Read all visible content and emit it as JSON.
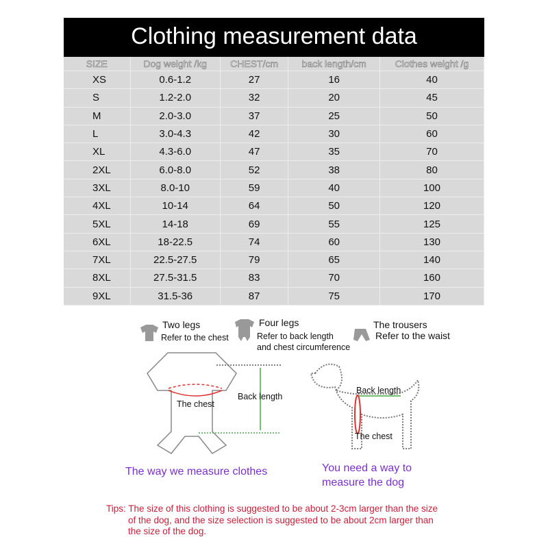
{
  "title": "Clothing measurement data",
  "table": {
    "headers": [
      "SIZE",
      "Dog weight /kg",
      "CHEST/cm",
      "back length/cm",
      "Clothes weight /g"
    ],
    "rows": [
      [
        "XS",
        "0.6-1.2",
        "27",
        "16",
        "40"
      ],
      [
        "S",
        "1.2-2.0",
        "32",
        "20",
        "45"
      ],
      [
        "M",
        "2.0-3.0",
        "37",
        "25",
        "50"
      ],
      [
        "L",
        "3.0-4.3",
        "42",
        "30",
        "60"
      ],
      [
        "XL",
        "4.3-6.0",
        "47",
        "35",
        "70"
      ],
      [
        "2XL",
        "6.0-8.0",
        "52",
        "38",
        "80"
      ],
      [
        "3XL",
        "8.0-10",
        "59",
        "40",
        "100"
      ],
      [
        "4XL",
        "10-14",
        "64",
        "50",
        "120"
      ],
      [
        "5XL",
        "14-18",
        "69",
        "55",
        "125"
      ],
      [
        "6XL",
        "18-22.5",
        "74",
        "60",
        "130"
      ],
      [
        "7XL",
        "22.5-27.5",
        "79",
        "65",
        "140"
      ],
      [
        "8XL",
        "27.5-31.5",
        "83",
        "70",
        "160"
      ],
      [
        "9XL",
        "31.5-36",
        "87",
        "75",
        "170"
      ]
    ]
  },
  "legend": {
    "two_legs": "Two legs",
    "two_legs_note": "Refer to the chest",
    "four_legs": "Four legs",
    "four_legs_note1": "Refer to back length",
    "four_legs_note2": "and chest circumference",
    "trousers": "The trousers",
    "trousers_note": "Refer to the waist"
  },
  "clothes_diagram": {
    "chest": "The chest",
    "back": "Back length",
    "caption": "The way we measure clothes"
  },
  "dog_diagram": {
    "back": "Back length",
    "chest": "The chest",
    "caption1": "You need a way to",
    "caption2": "measure the dog"
  },
  "tips": {
    "line1": "Tips: The size of this clothing is suggested to be about 2-3cm larger than the size",
    "line2": "of the dog, and the size selection is suggested to be about 2cm larger than",
    "line3": "the size of the dog."
  }
}
